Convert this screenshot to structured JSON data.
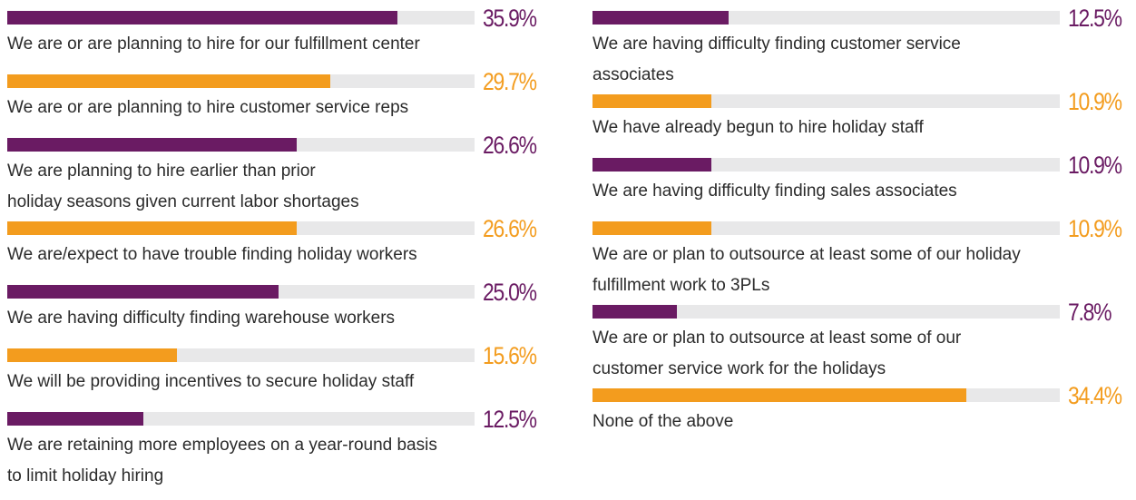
{
  "chart_data": {
    "type": "bar",
    "categories": [
      "We are or are planning to hire for our fulfillment center",
      "We are or are planning to hire customer service reps",
      "We are planning to hire earlier than prior\nholiday seasons given current labor shortages",
      "We are/expect to have trouble finding holiday workers",
      "We are having difficulty finding warehouse workers",
      "We will be providing incentives to secure holiday staff",
      "We are retaining more employees on a year-round basis\nto limit holiday hiring",
      "We are having difficulty finding customer service\nassociates",
      "We have already begun to hire holiday staff",
      "We are having difficulty finding sales associates",
      "We are or plan to outsource at least some of our holiday\nfulfillment work to 3PLs",
      "We are or plan to outsource at least some of our\ncustomer service work for the holidays",
      "None of the above"
    ],
    "values": [
      35.9,
      29.7,
      26.6,
      26.6,
      25.0,
      15.6,
      12.5,
      12.5,
      10.9,
      10.9,
      10.9,
      7.8,
      34.4
    ],
    "value_labels": [
      "35.9%",
      "29.7%",
      "26.6%",
      "26.6%",
      "25.0%",
      "15.6%",
      "12.5%",
      "12.5%",
      "10.9%",
      "10.9%",
      "10.9%",
      "7.8%",
      "34.4%"
    ],
    "colors": [
      "#6a1b63",
      "#f39c1e",
      "#6a1b63",
      "#f39c1e",
      "#6a1b63",
      "#f39c1e",
      "#6a1b63",
      "#6a1b63",
      "#f39c1e",
      "#6a1b63",
      "#f39c1e",
      "#6a1b63",
      "#f39c1e"
    ],
    "track_color": "#e8e8e9",
    "xlim": [
      0,
      43
    ]
  }
}
